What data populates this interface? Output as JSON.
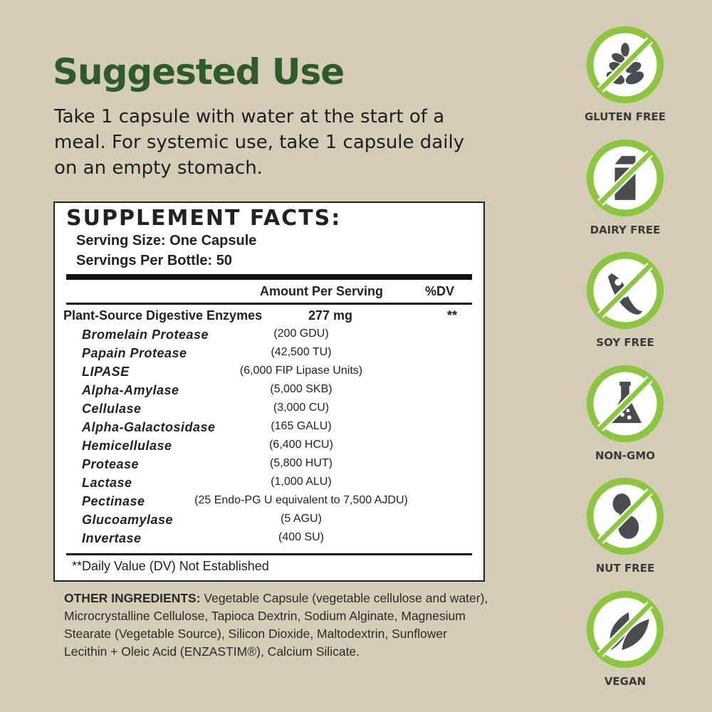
{
  "suggested_use": {
    "title": "Suggested Use",
    "text": "Take 1 capsule with water at the start of a meal. For systemic use, take 1 capsule daily on an empty stomach."
  },
  "supplement_facts": {
    "title": "SUPPLEMENT FACTS:",
    "serving_size": "Serving Size: One Capsule",
    "servings_per_bottle": "Servings Per Bottle: 50",
    "col_amount": "Amount Per Serving",
    "col_dv": "%DV",
    "main": {
      "name": "Plant-Source Digestive Enzymes",
      "amount": "277 mg",
      "dv": "**"
    },
    "items": [
      {
        "name": "Bromelain Protease",
        "amount": "(200 GDU)"
      },
      {
        "name": "Papain Protease",
        "amount": "(42,500 TU)"
      },
      {
        "name": "LIPASE",
        "amount": "(6,000 FIP Lipase Units)"
      },
      {
        "name": "Alpha-Amylase",
        "amount": "(5,000 SKB)"
      },
      {
        "name": "Cellulase",
        "amount": "(3,000 CU)"
      },
      {
        "name": "Alpha-Galactosidase",
        "amount": "(165 GALU)"
      },
      {
        "name": "Hemicellulase",
        "amount": "(6,400 HCU)"
      },
      {
        "name": "Protease",
        "amount": "(5,800 HUT)"
      },
      {
        "name": "Lactase",
        "amount": "(1,000 ALU)"
      },
      {
        "name": "Pectinase",
        "amount": "(25 Endo-PG U equivalent to 7,500 AJDU)"
      },
      {
        "name": "Glucoamylase",
        "amount": "(5 AGU)"
      },
      {
        "name": "Invertase",
        "amount": "(400 SU)"
      }
    ],
    "footnote": "**Daily Value (DV) Not Established"
  },
  "other_ingredients": {
    "label": "OTHER INGREDIENTS:",
    "text": " Vegetable Capsule (vegetable cellulose and water), Microcrystalline Cellulose, Tapioca Dextrin, Sodium Alginate, Magnesium Stearate (Vegetable Source),  Silicon Dioxide, Maltodextrin, Sunflower Lecithin + Oleic Acid (ENZASTIM®), Calcium Silicate."
  },
  "badges": [
    {
      "label": "GLUTEN FREE",
      "icon": "wheat-icon"
    },
    {
      "label": "DAIRY FREE",
      "icon": "milk-carton-icon"
    },
    {
      "label": "SOY FREE",
      "icon": "soybean-icon"
    },
    {
      "label": "NON-GMO",
      "icon": "flask-icon"
    },
    {
      "label": "NUT FREE",
      "icon": "peanut-icon"
    },
    {
      "label": "VEGAN",
      "icon": "leaf-icon"
    }
  ],
  "colors": {
    "title_green": "#2e5b2b",
    "badge_ring": "#8cc63f",
    "icon_gray": "#4a4d4f",
    "background": "#d5ccb7"
  }
}
